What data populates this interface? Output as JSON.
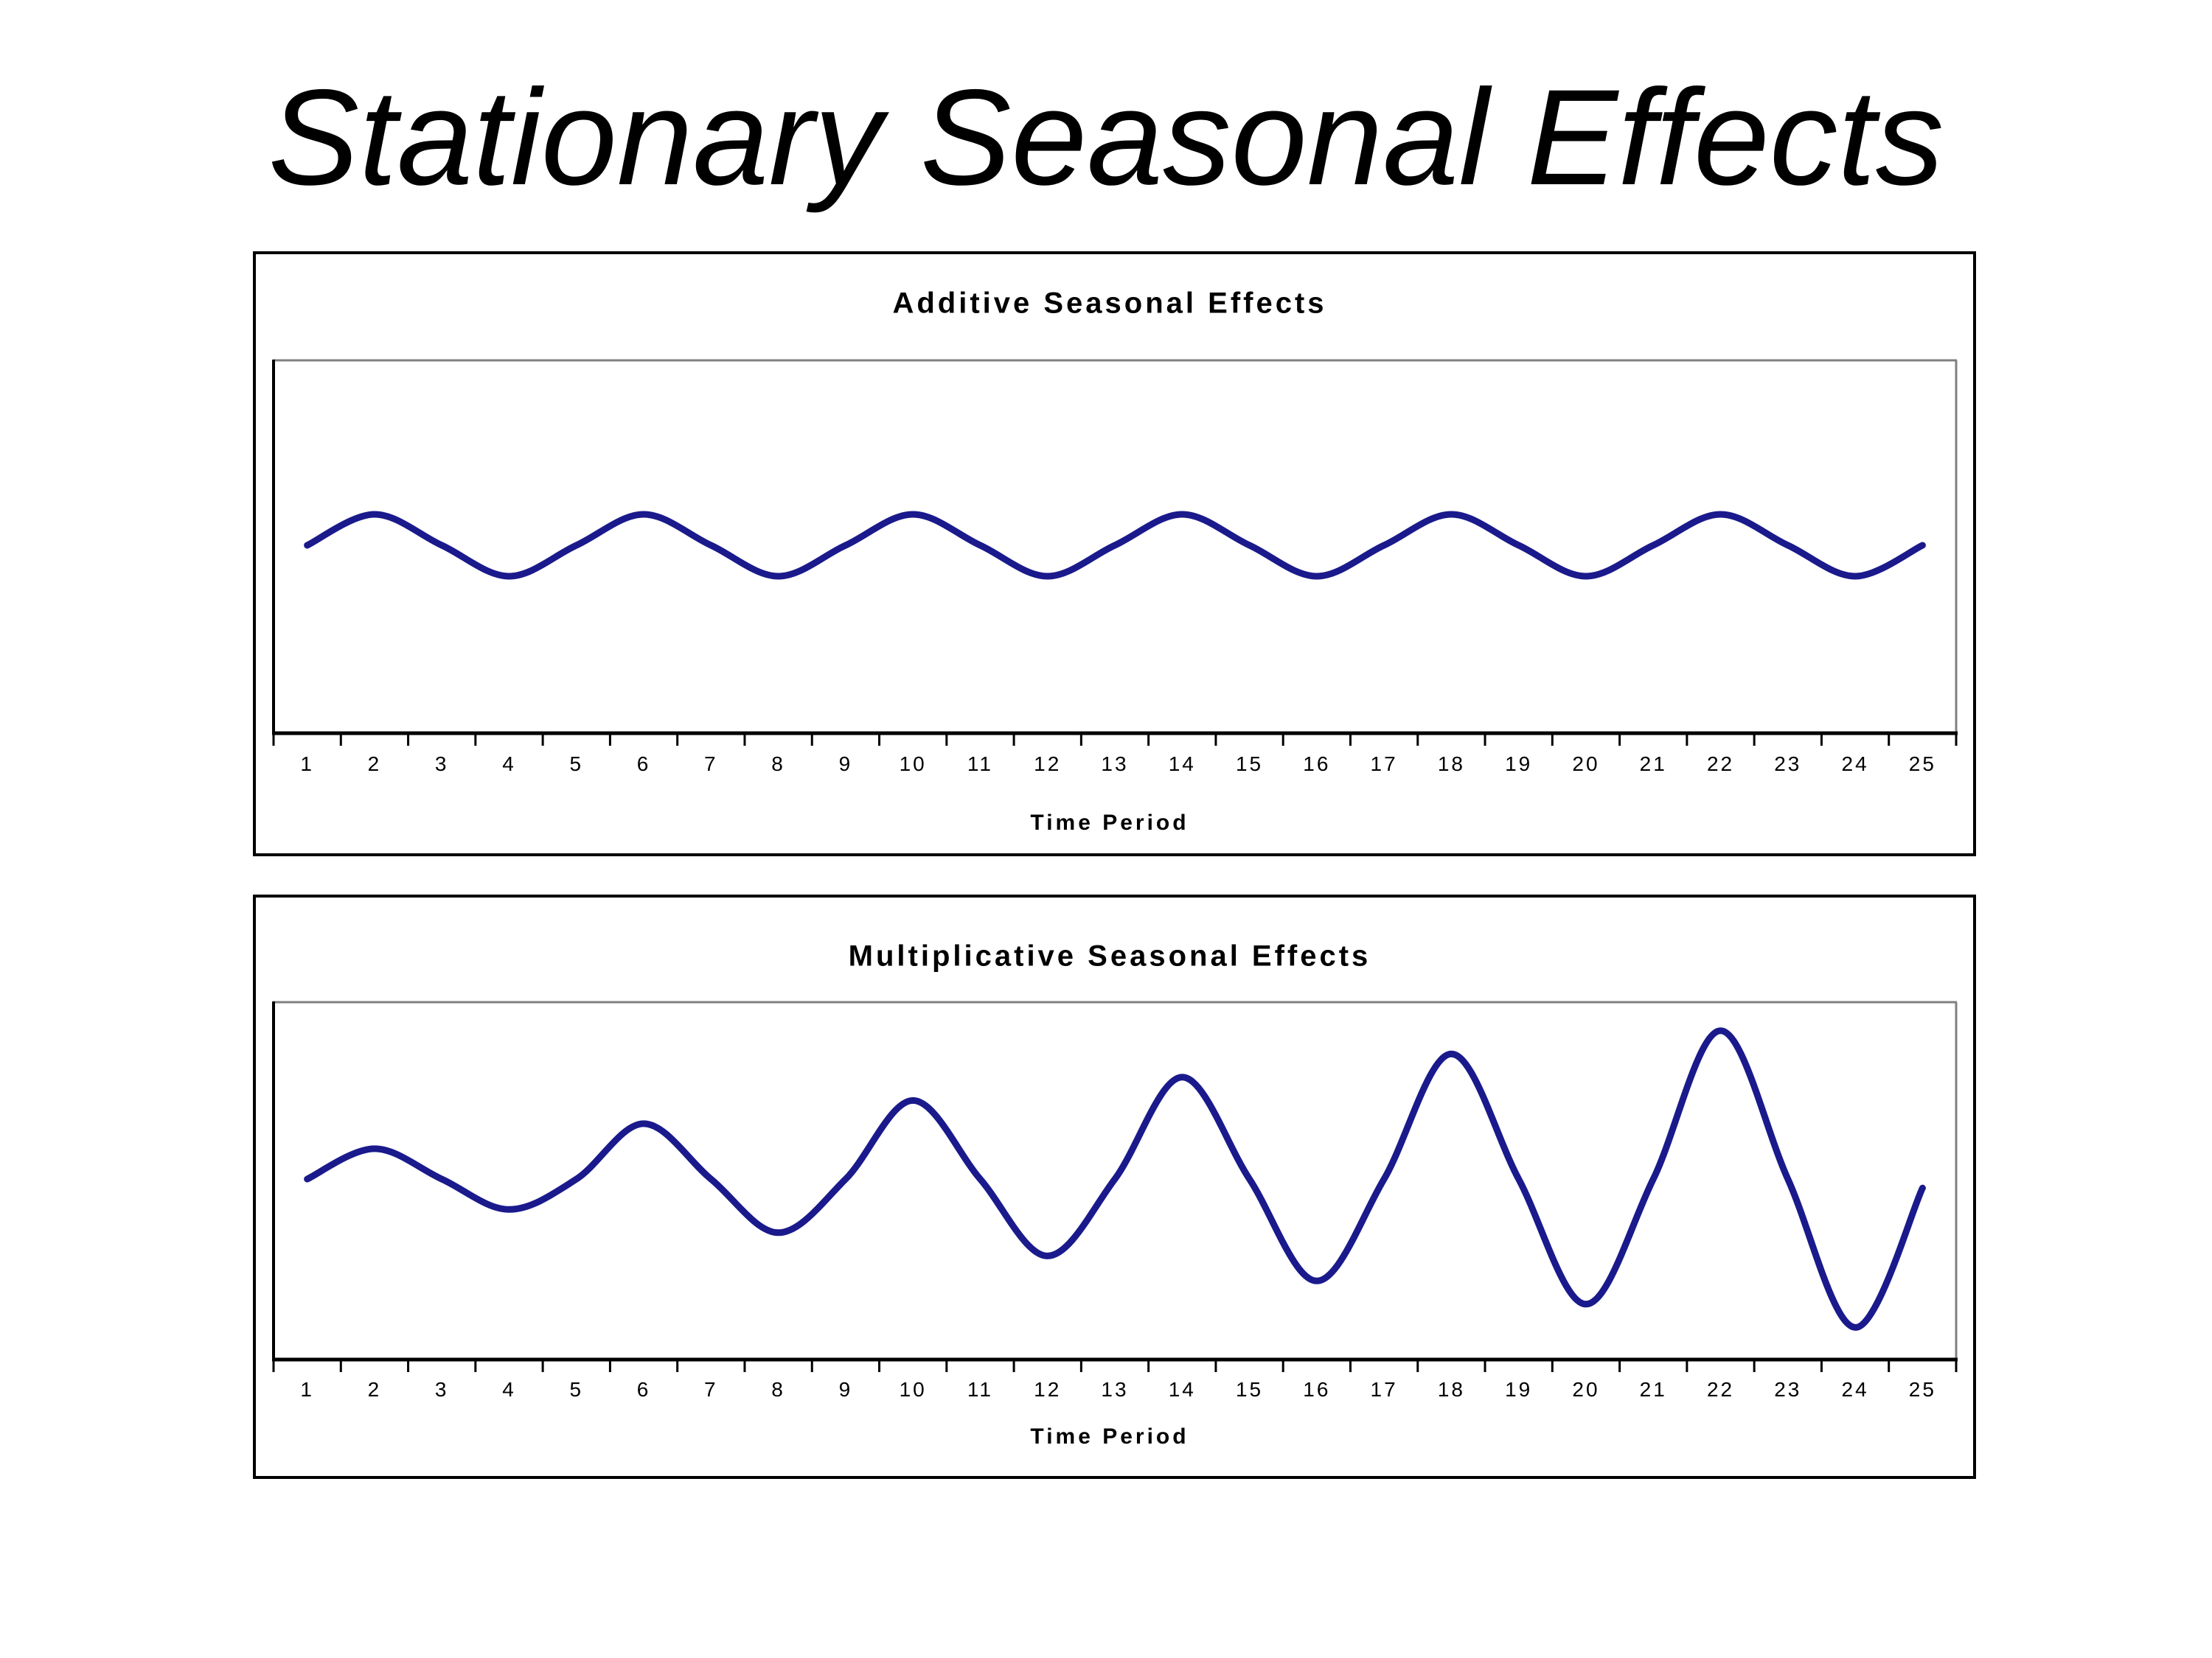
{
  "page": {
    "title": "Stationary Seasonal Effects"
  },
  "colors": {
    "background": "#ffffff",
    "frame": "#000000",
    "axis": "#000000",
    "plot_border": "#808080",
    "series_line": "#1a1a8c",
    "text": "#000000"
  },
  "chart_data": [
    {
      "type": "line",
      "title": "Additive Seasonal Effects",
      "xlabel": "Time Period",
      "ylabel": "",
      "y_axis_visible": false,
      "grid": false,
      "legend": "none",
      "ylim": [
        0,
        100
      ],
      "categories": [
        "1",
        "2",
        "3",
        "4",
        "5",
        "6",
        "7",
        "8",
        "9",
        "10",
        "11",
        "12",
        "13",
        "14",
        "15",
        "16",
        "17",
        "18",
        "19",
        "20",
        "21",
        "22",
        "23",
        "24",
        "25"
      ],
      "values": [
        50.4,
        58.7,
        50.4,
        42.1,
        50.4,
        58.7,
        50.4,
        42.1,
        50.4,
        58.7,
        50.4,
        42.1,
        50.4,
        58.7,
        50.4,
        42.1,
        50.4,
        58.7,
        50.4,
        42.1,
        50.4,
        58.7,
        50.4,
        42.1,
        50.4
      ],
      "line_color": "#1a1a8c",
      "description": "Constant-amplitude seasonal cycle, period 4: peaks at t=2,6,10,14,18,22 and troughs at t=4,8,12,16,20,24 around a flat level"
    },
    {
      "type": "line",
      "title": "Multiplicative Seasonal Effects",
      "xlabel": "Time Period",
      "ylabel": "",
      "y_axis_visible": false,
      "grid": false,
      "legend": "none",
      "ylim": [
        0,
        100
      ],
      "categories": [
        "1",
        "2",
        "3",
        "4",
        "5",
        "6",
        "7",
        "8",
        "9",
        "10",
        "11",
        "12",
        "13",
        "14",
        "15",
        "16",
        "17",
        "18",
        "19",
        "20",
        "21",
        "22",
        "23",
        "24",
        "25"
      ],
      "values": [
        50.5,
        59,
        50.5,
        42,
        50.5,
        66,
        50.5,
        35.5,
        50.5,
        72.5,
        50.5,
        29,
        50.5,
        79,
        50.5,
        22,
        50.5,
        85.5,
        50.5,
        15.5,
        50.5,
        92,
        50.5,
        9,
        48
      ],
      "line_color": "#1a1a8c",
      "description": "Seasonal cycle of period 4 with linearly growing amplitude: peaks at t=2,6,10,14,18,22 rise each cycle, troughs at t=4,8,12,16,20,24 deepen each cycle, level stays flat"
    }
  ]
}
